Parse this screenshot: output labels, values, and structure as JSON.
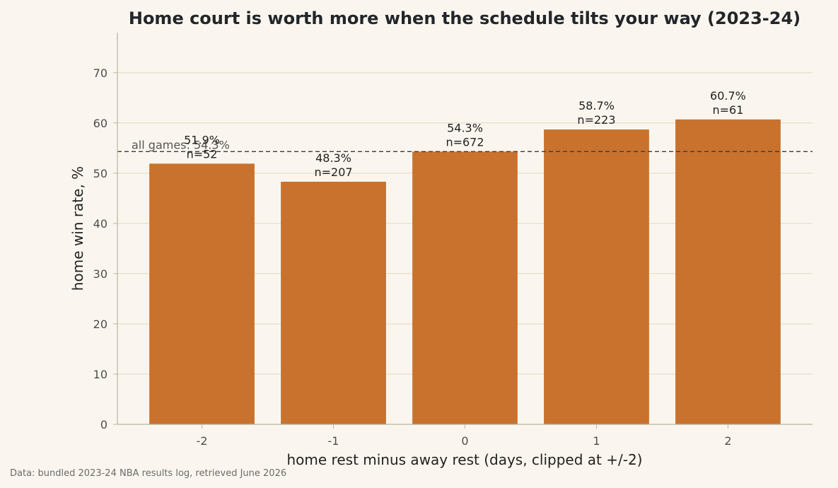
{
  "chart_data": {
    "type": "bar",
    "title": "Home court is worth more when the schedule tilts your way (2023-24)",
    "xlabel": "home rest minus away rest (days, clipped at +/-2)",
    "ylabel": "home win rate, %",
    "categories": [
      "-2",
      "-1",
      "0",
      "1",
      "2"
    ],
    "values": [
      51.9,
      48.3,
      54.3,
      58.7,
      60.7
    ],
    "value_labels": [
      "51.9%",
      "48.3%",
      "54.3%",
      "58.7%",
      "60.7%"
    ],
    "counts": [
      "n=52",
      "n=207",
      "n=672",
      "n=223",
      "n=61"
    ],
    "ylim": [
      0,
      78
    ],
    "yticks": [
      0,
      10,
      20,
      30,
      40,
      50,
      60,
      70
    ],
    "grid": true,
    "bar_color": "#c8722e",
    "reference_line": {
      "value": 54.3,
      "label": "all games: 54.3%"
    }
  },
  "source_note": "Data: bundled 2023-24 NBA results log, retrieved June 2026"
}
